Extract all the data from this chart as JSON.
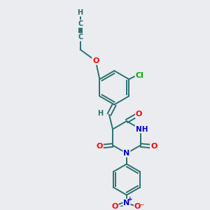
{
  "bg_color": "#eaecf0",
  "bond_color": "#2d7070",
  "atom_colors": {
    "O": "#ff0000",
    "N": "#0000cc",
    "Cl": "#00aa00",
    "H": "#2d7070",
    "C": "#2d7070"
  },
  "figsize": [
    3.0,
    3.0
  ],
  "dpi": 100
}
